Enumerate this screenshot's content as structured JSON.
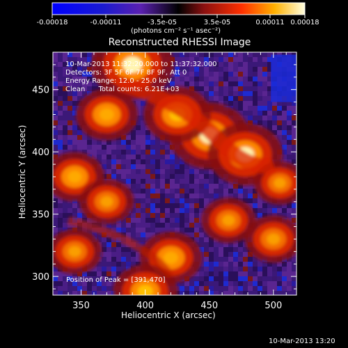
{
  "chart_data": {
    "type": "heatmap",
    "title": "Reconstructed RHESSI Image",
    "xlabel": "Heliocentric X (arcsec)",
    "ylabel": "Heliocentric Y (arcsec)",
    "xlim": [
      328,
      518
    ],
    "ylim": [
      285,
      480
    ],
    "x_ticks": [
      "350",
      "400",
      "450",
      "500"
    ],
    "y_ticks": [
      "300",
      "350",
      "400",
      "450"
    ],
    "colorbar": {
      "range": [
        -0.00018,
        0.00018
      ],
      "tick_labels": [
        "-0.00018",
        "-0.00011",
        "-3.5e-05",
        "3.5e-05",
        "0.00011",
        "0.00018"
      ],
      "unit_label": "(photons cm⁻² s⁻¹ asec⁻²)"
    },
    "annotations": [
      "10-Mar-2013 11:32:20.000 to 11:37:32.000",
      "Detectors: 3F 5F 6F 7F 8F 9F, Att 0",
      "Energy Range: 12.0 - 25.0 keV",
      "Clean      Total counts: 6.21E+03"
    ],
    "peak_label": "Position of Peak = [391,470]",
    "bright_regions": [
      {
        "x": 390,
        "y": 470,
        "intensity": 1.0
      },
      {
        "x": 450,
        "y": 413,
        "intensity": 0.95
      },
      {
        "x": 478,
        "y": 398,
        "intensity": 0.85
      },
      {
        "x": 425,
        "y": 430,
        "intensity": 0.7
      },
      {
        "x": 370,
        "y": 430,
        "intensity": 0.6
      },
      {
        "x": 345,
        "y": 380,
        "intensity": 0.55
      },
      {
        "x": 420,
        "y": 315,
        "intensity": 0.6
      },
      {
        "x": 500,
        "y": 330,
        "intensity": 0.5
      },
      {
        "x": 400,
        "y": 288,
        "intensity": 0.65
      },
      {
        "x": 370,
        "y": 360,
        "intensity": 0.45
      },
      {
        "x": 345,
        "y": 320,
        "intensity": 0.45
      },
      {
        "x": 465,
        "y": 345,
        "intensity": 0.45
      },
      {
        "x": 505,
        "y": 375,
        "intensity": 0.4
      }
    ]
  },
  "timestamp": "10-Mar-2013 13:20"
}
